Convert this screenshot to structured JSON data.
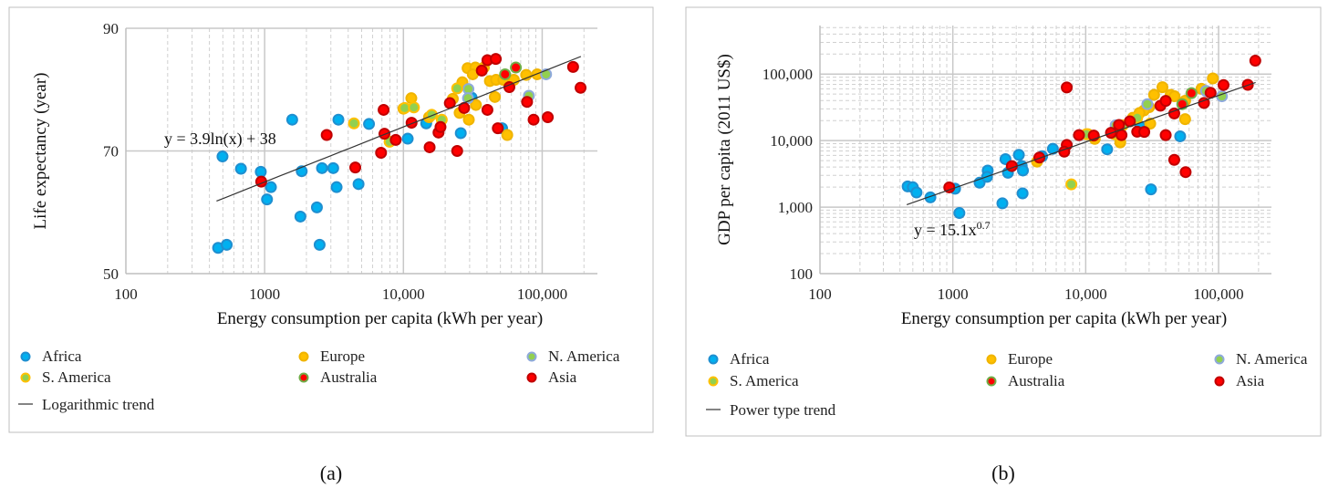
{
  "chart_data": [
    {
      "type": "scatter",
      "panel_label": "(a)",
      "xlabel": "Energy consumption per capita (kWh per year)",
      "ylabel": "Life expectancy (year)",
      "xscale": "log",
      "xlim": [
        100,
        250000
      ],
      "ylim": [
        50,
        90
      ],
      "xticks": [
        "100",
        "1000",
        "10,000",
        "100,000"
      ],
      "yticks": [
        "50",
        "70",
        "90"
      ],
      "trend": {
        "label": "Logarithmic trend",
        "equation": "y = 3.9ln(x) + 38",
        "a": 3.9,
        "b": 38,
        "form": "log",
        "xrange": [
          450,
          190000
        ]
      },
      "legend_position": "bottom",
      "series": [
        {
          "name": "Africa",
          "fill": "#00B0F0",
          "stroke": "#1F8FD0",
          "points": [
            [
              497,
              69.1
            ],
            [
              675,
              67.1
            ],
            [
              938,
              66.6
            ],
            [
              1040,
              62.1
            ],
            [
              1110,
              64.1
            ],
            [
              1850,
              66.7
            ],
            [
              1810,
              59.3
            ],
            [
              1580,
              75.1
            ],
            [
              2590,
              67.2
            ],
            [
              2380,
              60.8
            ],
            [
              2490,
              54.7
            ],
            [
              3120,
              67.2
            ],
            [
              3300,
              64.1
            ],
            [
              3400,
              75.1
            ],
            [
              4750,
              64.6
            ],
            [
              5650,
              74.4
            ],
            [
              10740,
              72.0
            ],
            [
              14600,
              74.5
            ],
            [
              25900,
              72.9
            ],
            [
              31000,
              78.7
            ],
            [
              51400,
              73.7
            ],
            [
              462,
              54.2
            ],
            [
              533,
              54.7
            ]
          ]
        },
        {
          "name": "Europe",
          "fill": "#FFC000",
          "stroke": "#F0B400",
          "points": [
            [
              29000,
              83.5
            ],
            [
              33000,
              83.6
            ],
            [
              31600,
              82.5
            ],
            [
              38000,
              83.6
            ],
            [
              42000,
              81.4
            ],
            [
              46500,
              81.6
            ],
            [
              52500,
              81.6
            ],
            [
              62500,
              81.6
            ],
            [
              76700,
              82.4
            ],
            [
              92000,
              82.5
            ],
            [
              25400,
              76.2
            ],
            [
              29600,
              75.1
            ],
            [
              33300,
              77.5
            ],
            [
              45600,
              78.8
            ],
            [
              56000,
              72.6
            ],
            [
              22700,
              78.5
            ],
            [
              26600,
              81.2
            ],
            [
              11400,
              78.6
            ],
            [
              10000,
              76.9
            ],
            [
              15300,
              75.5
            ]
          ]
        },
        {
          "name": "N. America",
          "fill": "#92D050",
          "stroke": "#8EA9DB",
          "points": [
            [
              29400,
              80.1
            ],
            [
              29200,
              78.6
            ],
            [
              80200,
              79.0
            ],
            [
              106700,
              82.5
            ]
          ]
        },
        {
          "name": "S. America",
          "fill": "#92D050",
          "stroke": "#FFC000",
          "points": [
            [
              4400,
              74.5
            ],
            [
              7950,
              71.5
            ],
            [
              10200,
              77.0
            ],
            [
              11900,
              77.1
            ],
            [
              16000,
              75.9
            ],
            [
              18900,
              75.1
            ],
            [
              24400,
              80.2
            ]
          ]
        },
        {
          "name": "Australia",
          "fill": "#FF0000",
          "stroke": "#70AD47",
          "points": [
            [
              54000,
              82.5
            ],
            [
              64600,
              83.6
            ]
          ]
        },
        {
          "name": "Asia",
          "fill": "#FF0000",
          "stroke": "#C00000",
          "points": [
            [
              945,
              65
            ],
            [
              2800,
              72.6
            ],
            [
              4500,
              67.3
            ],
            [
              7200,
              76.7
            ],
            [
              7300,
              72.8
            ],
            [
              6900,
              69.7
            ],
            [
              8800,
              71.8
            ],
            [
              11450,
              74.6
            ],
            [
              15450,
              70.6
            ],
            [
              17900,
              73.0
            ],
            [
              18500,
              73.9
            ],
            [
              21600,
              77.8
            ],
            [
              24400,
              70.0
            ],
            [
              27400,
              77.0
            ],
            [
              36700,
              83.1
            ],
            [
              40300,
              84.8
            ],
            [
              46300,
              85.0
            ],
            [
              40300,
              76.7
            ],
            [
              47900,
              73.7
            ],
            [
              58000,
              80.4
            ],
            [
              77800,
              78.0
            ],
            [
              86700,
              75.1
            ],
            [
              109700,
              75.5
            ],
            [
              167000,
              83.7
            ],
            [
              189000,
              80.3
            ]
          ]
        }
      ]
    },
    {
      "type": "scatter",
      "panel_label": "(b)",
      "xlabel": "Energy consumption per capita (kWh per year)",
      "ylabel": "GDP per capita (2011 US$)",
      "xscale": "log",
      "yscale": "log",
      "xlim": [
        100,
        250000
      ],
      "ylim": [
        100,
        537000
      ],
      "xticks": [
        "100",
        "1000",
        "10,000",
        "100,000"
      ],
      "yticks": [
        "100",
        "1,000",
        "10,000",
        "100,000"
      ],
      "trend": {
        "label": "Power type trend",
        "equation": "y = 15.1x",
        "equation_exp": "0.7",
        "a": 15.1,
        "b": 0.7,
        "form": "power",
        "xrange": [
          450,
          190000
        ]
      },
      "legend_position": "bottom",
      "series": [
        {
          "name": "Africa",
          "fill": "#00B0F0",
          "stroke": "#1F8FD0",
          "points": [
            [
              457,
              2050
            ],
            [
              500,
              1990
            ],
            [
              533,
              1660
            ],
            [
              678,
              1400
            ],
            [
              1040,
              1890
            ],
            [
              1120,
              815
            ],
            [
              1590,
              2330
            ],
            [
              1830,
              3550
            ],
            [
              1810,
              2850
            ],
            [
              2490,
              5270
            ],
            [
              2600,
              3290
            ],
            [
              3140,
              6100
            ],
            [
              3300,
              4150
            ],
            [
              3370,
              3550
            ],
            [
              3350,
              1610
            ],
            [
              2360,
              1140
            ],
            [
              4700,
              5820
            ],
            [
              5660,
              7520
            ],
            [
              14500,
              7400
            ],
            [
              31000,
              1850
            ],
            [
              51400,
              11600
            ],
            [
              25700,
              16200
            ]
          ]
        },
        {
          "name": "Europe",
          "fill": "#FFC000",
          "stroke": "#F0B400",
          "points": [
            [
              37800,
              63500
            ],
            [
              32700,
              48800
            ],
            [
              30000,
              31800
            ],
            [
              27500,
              28500
            ],
            [
              25400,
              26000
            ],
            [
              22600,
              22000
            ],
            [
              30600,
              18000
            ],
            [
              43600,
              48800
            ],
            [
              46600,
              46400
            ],
            [
              56000,
              21000
            ],
            [
              74300,
              60000
            ],
            [
              90500,
              86000
            ],
            [
              10400,
              12500
            ],
            [
              11700,
              10600
            ],
            [
              18200,
              9400
            ],
            [
              4300,
              4830
            ],
            [
              56000,
              39700
            ]
          ]
        },
        {
          "name": "N. America",
          "fill": "#92D050",
          "stroke": "#8EA9DB",
          "points": [
            [
              29100,
              35300
            ],
            [
              80400,
              56000
            ],
            [
              106000,
              46400
            ],
            [
              16800,
              17000
            ]
          ]
        },
        {
          "name": "S. America",
          "fill": "#92D050",
          "stroke": "#FFC000",
          "points": [
            [
              7800,
              2200
            ],
            [
              16400,
              12500
            ],
            [
              19000,
              17000
            ],
            [
              24400,
              22000
            ],
            [
              10100,
              12500
            ]
          ]
        },
        {
          "name": "Australia",
          "fill": "#FF0000",
          "stroke": "#70AD47",
          "points": [
            [
              53300,
              35300
            ],
            [
              62500,
              51600
            ]
          ]
        },
        {
          "name": "Asia",
          "fill": "#FF0000",
          "stroke": "#C00000",
          "points": [
            [
              940,
              1980
            ],
            [
              2780,
              4140
            ],
            [
              4480,
              5560
            ],
            [
              7200,
              63000
            ],
            [
              7200,
              8600
            ],
            [
              6900,
              6820
            ],
            [
              8900,
              12100
            ],
            [
              11500,
              11900
            ],
            [
              15500,
              13100
            ],
            [
              17800,
              17200
            ],
            [
              18600,
              12100
            ],
            [
              21500,
              19500
            ],
            [
              24400,
              13600
            ],
            [
              27600,
              13500
            ],
            [
              36500,
              33500
            ],
            [
              40000,
              39500
            ],
            [
              40000,
              12100
            ],
            [
              46400,
              25600
            ],
            [
              46400,
              5140
            ],
            [
              56500,
              3360
            ],
            [
              77700,
              36800
            ],
            [
              87100,
              52400
            ],
            [
              109000,
              68500
            ],
            [
              166000,
              69000
            ],
            [
              189000,
              159000
            ]
          ]
        }
      ]
    }
  ]
}
